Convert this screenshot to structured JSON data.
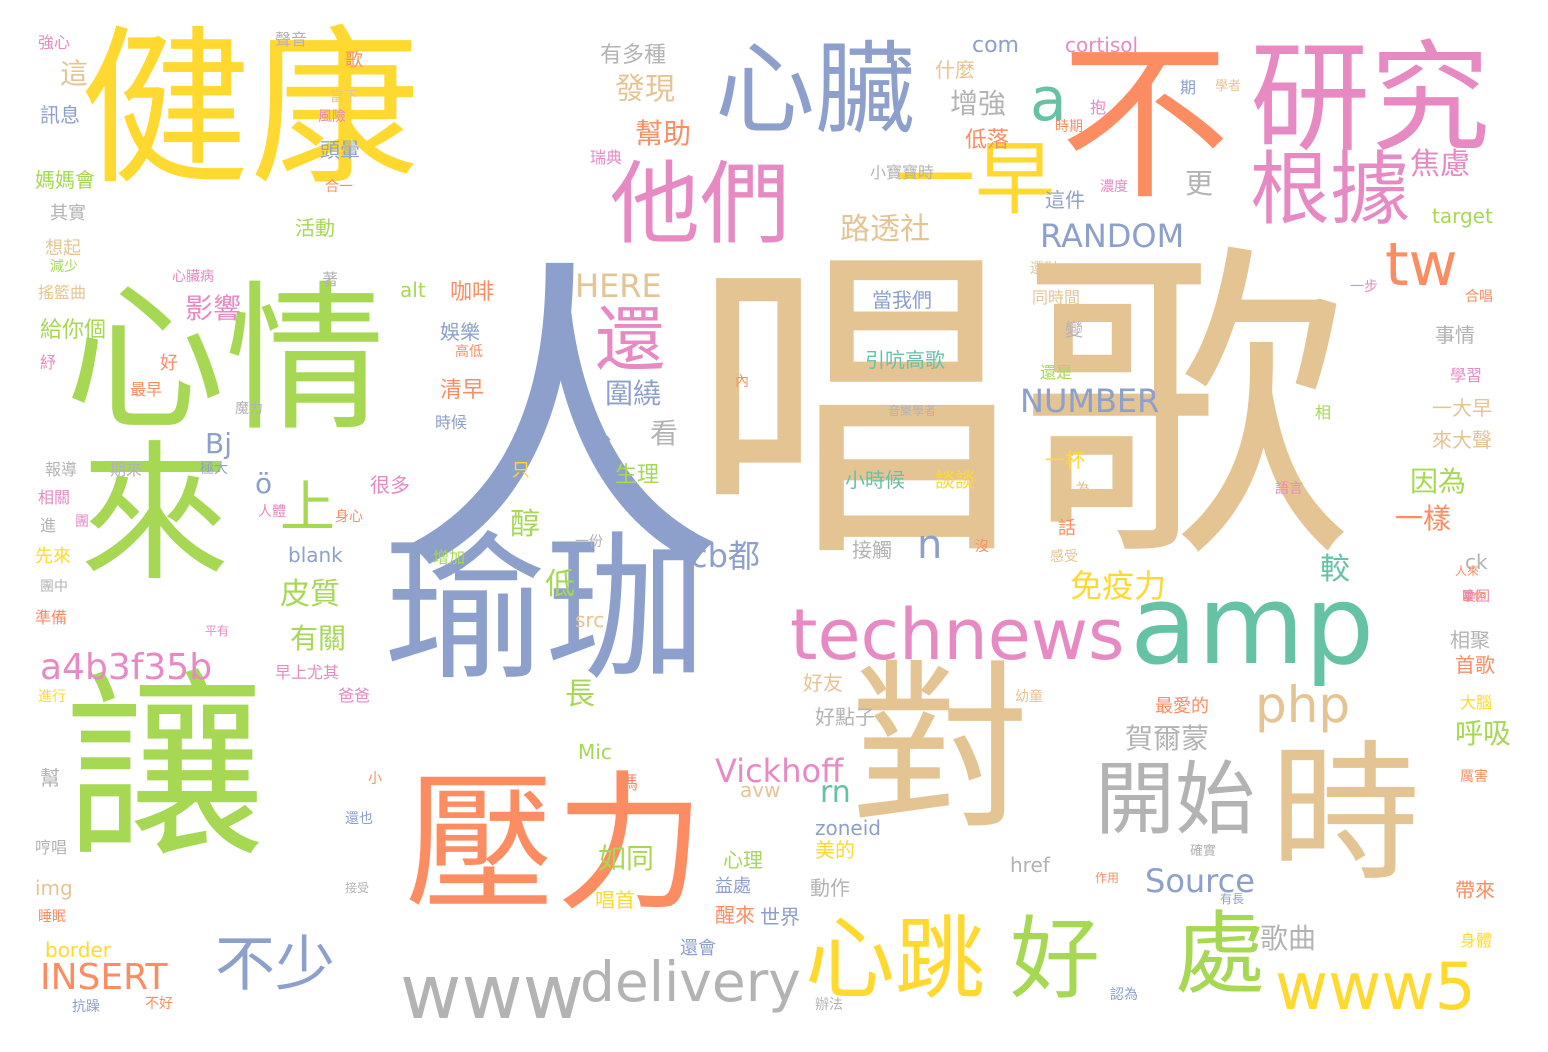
{
  "palette": {
    "yellow": "#FFD92F",
    "tan": "#E5C494",
    "slate": "#8DA0CB",
    "green": "#A6D854",
    "teal": "#66C2A5",
    "orange": "#FC8D62",
    "pink": "#E78AC3",
    "gray": "#B3B3B3"
  },
  "words": [
    {
      "text": "唱歌",
      "color": "#E5C494"
    },
    {
      "text": "人",
      "color": "#8DA0CB"
    },
    {
      "text": "健康",
      "color": "#FFD92F"
    },
    {
      "text": "心情",
      "color": "#A6D854"
    },
    {
      "text": "瑜珈",
      "color": "#8DA0CB"
    },
    {
      "text": "讓",
      "color": "#A6D854"
    },
    {
      "text": "來",
      "color": "#A6D854"
    },
    {
      "text": "對",
      "color": "#E5C494"
    },
    {
      "text": "時",
      "color": "#E5C494"
    },
    {
      "text": "壓力",
      "color": "#FC8D62"
    },
    {
      "text": "不",
      "color": "#FC8D62"
    },
    {
      "text": "研究",
      "color": "#E78AC3"
    },
    {
      "text": "心臟",
      "color": "#8DA0CB"
    },
    {
      "text": "amp",
      "color": "#66C2A5"
    },
    {
      "text": "他們",
      "color": "#E78AC3"
    },
    {
      "text": "一早",
      "color": "#FFD92F"
    },
    {
      "text": "根據",
      "color": "#E78AC3"
    },
    {
      "text": "technews",
      "color": "#E78AC3"
    },
    {
      "text": "心跳",
      "color": "#FFD92F"
    },
    {
      "text": "好",
      "color": "#A6D854"
    },
    {
      "text": "處",
      "color": "#A6D854"
    },
    {
      "text": "www5",
      "color": "#FFD92F"
    },
    {
      "text": "開始",
      "color": "#B3B3B3"
    },
    {
      "text": "www",
      "color": "#B3B3B3"
    },
    {
      "text": "delivery",
      "color": "#B3B3B3"
    },
    {
      "text": "還",
      "color": "#E78AC3"
    },
    {
      "text": "tw",
      "color": "#FC8D62"
    },
    {
      "text": "a",
      "color": "#66C2A5"
    },
    {
      "text": "不少",
      "color": "#8DA0CB"
    },
    {
      "text": "上",
      "color": "#A6D854"
    },
    {
      "text": "php",
      "color": "#E5C494"
    },
    {
      "text": "a4b3f35b",
      "color": "#E78AC3"
    },
    {
      "text": "INSERT",
      "color": "#FC8D62"
    },
    {
      "text": "RANDOM",
      "color": "#8DA0CB"
    },
    {
      "text": "NUMBER",
      "color": "#8DA0CB"
    },
    {
      "text": "HERE",
      "color": "#E5C494"
    },
    {
      "text": "cb都",
      "color": "#8DA0CB"
    },
    {
      "text": "Vickhoff",
      "color": "#E78AC3"
    },
    {
      "text": "Source",
      "color": "#8DA0CB"
    },
    {
      "text": "免疫力",
      "color": "#FFD92F"
    },
    {
      "text": "路透社",
      "color": "#E5C494"
    },
    {
      "text": "發現",
      "color": "#E5C494"
    },
    {
      "text": "幫助",
      "color": "#FC8D62"
    },
    {
      "text": "增強",
      "color": "#B3B3B3"
    },
    {
      "text": "焦慮",
      "color": "#E78AC3"
    },
    {
      "text": "影響",
      "color": "#E78AC3"
    },
    {
      "text": "皮質",
      "color": "#A6D854"
    },
    {
      "text": "有關",
      "color": "#A6D854"
    },
    {
      "text": "圍繞",
      "color": "#8DA0CB"
    },
    {
      "text": "因為",
      "color": "#A6D854"
    },
    {
      "text": "一樣",
      "color": "#FC8D62"
    },
    {
      "text": "賀爾蒙",
      "color": "#B3B3B3"
    },
    {
      "text": "歌曲",
      "color": "#B3B3B3"
    },
    {
      "text": "呼吸",
      "color": "#A6D854"
    },
    {
      "text": "如同",
      "color": "#A6D854"
    },
    {
      "text": "醇",
      "color": "#A6D854"
    },
    {
      "text": "低",
      "color": "#A6D854"
    },
    {
      "text": "長",
      "color": "#A6D854"
    },
    {
      "text": "看",
      "color": "#B3B3B3"
    },
    {
      "text": "較",
      "color": "#66C2A5"
    },
    {
      "text": "更",
      "color": "#B3B3B3"
    },
    {
      "text": "這",
      "color": "#E5C494"
    },
    {
      "text": "n",
      "color": "#8DA0CB"
    },
    {
      "text": "rn",
      "color": "#66C2A5"
    },
    {
      "text": "Bj",
      "color": "#8DA0CB"
    },
    {
      "text": "ö",
      "color": "#8DA0CB"
    },
    {
      "text": "com",
      "color": "#8DA0CB"
    },
    {
      "text": "cortisol",
      "color": "#E78AC3"
    },
    {
      "text": "有多種",
      "color": "#B3B3B3"
    },
    {
      "text": "什麼",
      "color": "#E5C494"
    },
    {
      "text": "低落",
      "color": "#FC8D62"
    },
    {
      "text": "生理",
      "color": "#A6D854"
    },
    {
      "text": "咖啡",
      "color": "#FC8D62"
    },
    {
      "text": "娛樂",
      "color": "#8DA0CB"
    },
    {
      "text": "清早",
      "color": "#FC8D62"
    },
    {
      "text": "很多",
      "color": "#E78AC3"
    },
    {
      "text": "給你個",
      "color": "#A6D854"
    },
    {
      "text": "活動",
      "color": "#A6D854"
    },
    {
      "text": "alt",
      "color": "#A6D854"
    },
    {
      "text": "blank",
      "color": "#8DA0CB"
    },
    {
      "text": "src",
      "color": "#E5C494"
    },
    {
      "text": "img",
      "color": "#E5C494"
    },
    {
      "text": "href",
      "color": "#B3B3B3"
    },
    {
      "text": "zoneid",
      "color": "#8DA0CB"
    },
    {
      "text": "avw",
      "color": "#E5C494"
    },
    {
      "text": "Mic",
      "color": "#A6D854"
    },
    {
      "text": "border",
      "color": "#FFD92F"
    },
    {
      "text": "ck",
      "color": "#B3B3B3"
    },
    {
      "text": "target",
      "color": "#A6D854"
    },
    {
      "text": "好友",
      "color": "#E5C494"
    },
    {
      "text": "好點子",
      "color": "#B3B3B3"
    },
    {
      "text": "當我們",
      "color": "#8DA0CB"
    },
    {
      "text": "引吭高歌",
      "color": "#66C2A5"
    },
    {
      "text": "小時候",
      "color": "#66C2A5"
    },
    {
      "text": "談談",
      "color": "#FFD92F"
    },
    {
      "text": "接觸",
      "color": "#B3B3B3"
    },
    {
      "text": "這件",
      "color": "#8DA0CB"
    },
    {
      "text": "一杯",
      "color": "#FFD92F"
    },
    {
      "text": "一大早",
      "color": "#E5C494"
    },
    {
      "text": "來大聲",
      "color": "#E5C494"
    },
    {
      "text": "事情",
      "color": "#B3B3B3"
    },
    {
      "text": "心理",
      "color": "#A6D854"
    },
    {
      "text": "美的",
      "color": "#FFD92F"
    },
    {
      "text": "動作",
      "color": "#B3B3B3"
    },
    {
      "text": "益處",
      "color": "#8DA0CB"
    },
    {
      "text": "醒來",
      "color": "#FC8D62"
    },
    {
      "text": "唱首",
      "color": "#FFD92F"
    },
    {
      "text": "世界",
      "color": "#8DA0CB"
    },
    {
      "text": "還會",
      "color": "#8DA0CB"
    },
    {
      "text": "帶來",
      "color": "#FC8D62"
    },
    {
      "text": "首歌",
      "color": "#FC8D62"
    },
    {
      "text": "相聚",
      "color": "#B3B3B3"
    },
    {
      "text": "最愛的",
      "color": "#FC8D62"
    },
    {
      "text": "頭暈",
      "color": "#8DA0CB"
    },
    {
      "text": "媽媽會",
      "color": "#A6D854"
    },
    {
      "text": "其實",
      "color": "#B3B3B3"
    },
    {
      "text": "想起",
      "color": "#E5C494"
    },
    {
      "text": "訊息",
      "color": "#8DA0CB"
    },
    {
      "text": "強心",
      "color": "#E78AC3"
    },
    {
      "text": "聲音",
      "color": "#B3B3B3"
    },
    {
      "text": "歌",
      "color": "#FC8D62"
    },
    {
      "text": "當下",
      "color": "#E5C494"
    },
    {
      "text": "風險",
      "color": "#E78AC3"
    },
    {
      "text": "合一",
      "color": "#FC8D62"
    },
    {
      "text": "瑞典",
      "color": "#E78AC3"
    },
    {
      "text": "小寶寶時",
      "color": "#B3B3B3"
    },
    {
      "text": "濃度",
      "color": "#E78AC3"
    },
    {
      "text": "時期",
      "color": "#FC8D62"
    },
    {
      "text": "抱",
      "color": "#E78AC3"
    },
    {
      "text": "期",
      "color": "#8DA0CB"
    },
    {
      "text": "學者",
      "color": "#E5C494"
    },
    {
      "text": "減少",
      "color": "#A6D854"
    },
    {
      "text": "心臟病",
      "color": "#E78AC3"
    },
    {
      "text": "著",
      "color": "#B3B3B3"
    },
    {
      "text": "搖籃曲",
      "color": "#E5C494"
    },
    {
      "text": "好",
      "color": "#FC8D62"
    },
    {
      "text": "最早",
      "color": "#FC8D62"
    },
    {
      "text": "紓",
      "color": "#E78AC3"
    },
    {
      "text": "高低",
      "color": "#FC8D62"
    },
    {
      "text": "時候",
      "color": "#8DA0CB"
    },
    {
      "text": "報導",
      "color": "#B3B3B3"
    },
    {
      "text": "期來",
      "color": "#B3B3B3"
    },
    {
      "text": "魔力",
      "color": "#B3B3B3"
    },
    {
      "text": "極大",
      "color": "#8DA0CB"
    },
    {
      "text": "相關",
      "color": "#E78AC3"
    },
    {
      "text": "進",
      "color": "#B3B3B3"
    },
    {
      "text": "團",
      "color": "#E78AC3"
    },
    {
      "text": "人體",
      "color": "#E78AC3"
    },
    {
      "text": "身心",
      "color": "#FC8D62"
    },
    {
      "text": "先來",
      "color": "#FFD92F"
    },
    {
      "text": "團中",
      "color": "#B3B3B3"
    },
    {
      "text": "準備",
      "color": "#FC8D62"
    },
    {
      "text": "平有",
      "color": "#E78AC3"
    },
    {
      "text": "早上尤其",
      "color": "#E78AC3"
    },
    {
      "text": "進行",
      "color": "#FFD92F"
    },
    {
      "text": "爸爸",
      "color": "#E78AC3"
    },
    {
      "text": "小",
      "color": "#FC8D62"
    },
    {
      "text": "幫",
      "color": "#B3B3B3"
    },
    {
      "text": "嗎",
      "color": "#FC8D62"
    },
    {
      "text": "還也",
      "color": "#8DA0CB"
    },
    {
      "text": "哼唱",
      "color": "#B3B3B3"
    },
    {
      "text": "接受",
      "color": "#B3B3B3"
    },
    {
      "text": "睡眠",
      "color": "#FC8D62"
    },
    {
      "text": "抗躁",
      "color": "#8DA0CB"
    },
    {
      "text": "不好",
      "color": "#FC8D62"
    },
    {
      "text": "辦法",
      "color": "#B3B3B3"
    },
    {
      "text": "認為",
      "color": "#8DA0CB"
    },
    {
      "text": "有長",
      "color": "#8DA0CB"
    },
    {
      "text": "作用",
      "color": "#FC8D62"
    },
    {
      "text": "確實",
      "color": "#B3B3B3"
    },
    {
      "text": "身體",
      "color": "#FFD92F"
    },
    {
      "text": "大腦",
      "color": "#FFD92F"
    },
    {
      "text": "厲害",
      "color": "#FC8D62"
    },
    {
      "text": "愛",
      "color": "#E78AC3"
    },
    {
      "text": "當你",
      "color": "#FC8D62"
    },
    {
      "text": "幼童",
      "color": "#E5C494"
    },
    {
      "text": "人來",
      "color": "#FC8D62"
    },
    {
      "text": "喚回",
      "color": "#E78AC3"
    },
    {
      "text": "語言",
      "color": "#E78AC3"
    },
    {
      "text": "沒",
      "color": "#FC8D62"
    },
    {
      "text": "感受",
      "color": "#E5C494"
    },
    {
      "text": "話",
      "color": "#FC8D62"
    },
    {
      "text": "為",
      "color": "#E5C494"
    },
    {
      "text": "說",
      "color": "#8DA0CB"
    },
    {
      "text": "只",
      "color": "#FFD92F"
    },
    {
      "text": "一份",
      "color": "#B3B3B3"
    },
    {
      "text": "增加",
      "color": "#A6D854"
    },
    {
      "text": "內",
      "color": "#FC8D62"
    },
    {
      "text": "音樂學者",
      "color": "#B3B3B3"
    },
    {
      "text": "還是",
      "color": "#A6D854"
    },
    {
      "text": "學習",
      "color": "#E78AC3"
    },
    {
      "text": "相",
      "color": "#A6D854"
    },
    {
      "text": "變",
      "color": "#B3B3B3"
    },
    {
      "text": "同時間",
      "color": "#E5C494"
    },
    {
      "text": "還對",
      "color": "#E5C494"
    },
    {
      "text": "一步",
      "color": "#E78AC3"
    },
    {
      "text": "合唱",
      "color": "#FC8D62"
    }
  ]
}
